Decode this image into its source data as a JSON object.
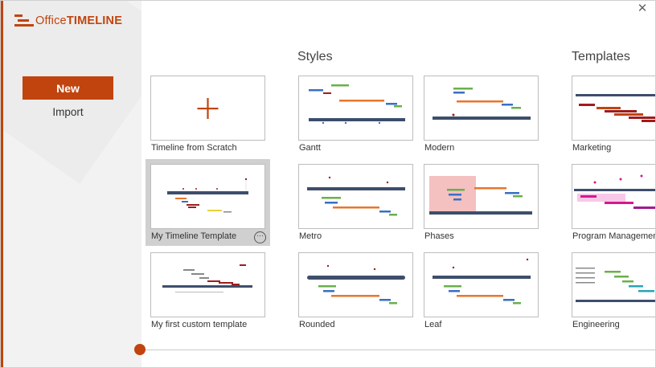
{
  "app": {
    "logo_part1": "Office",
    "logo_part2": "TIMELINE"
  },
  "window": {
    "close_glyph": "✕"
  },
  "nav": {
    "new_label": "New",
    "import_label": "Import"
  },
  "sections": {
    "styles_title": "Styles",
    "templates_title": "Templates"
  },
  "tiles": {
    "scratch": {
      "label": "Timeline from Scratch",
      "icon": "plus-icon"
    },
    "my_template": {
      "label": "My Timeline Template",
      "more_glyph": "···"
    },
    "custom": {
      "label": "My first custom template"
    }
  },
  "styles": [
    {
      "label": "Gantt"
    },
    {
      "label": "Modern"
    },
    {
      "label": "Metro"
    },
    {
      "label": "Phases"
    },
    {
      "label": "Rounded"
    },
    {
      "label": "Leaf"
    }
  ],
  "templates": [
    {
      "label": "Marketing"
    },
    {
      "label": "Program Management"
    },
    {
      "label": "Engineering"
    }
  ],
  "colors": {
    "accent": "#c1440e",
    "timeline_bar": "#3d4e6b",
    "orange": "#e8762c",
    "blue": "#3a6fc4",
    "green": "#6ab04c",
    "maroon": "#a01c1c",
    "pink": "#d4198f"
  }
}
